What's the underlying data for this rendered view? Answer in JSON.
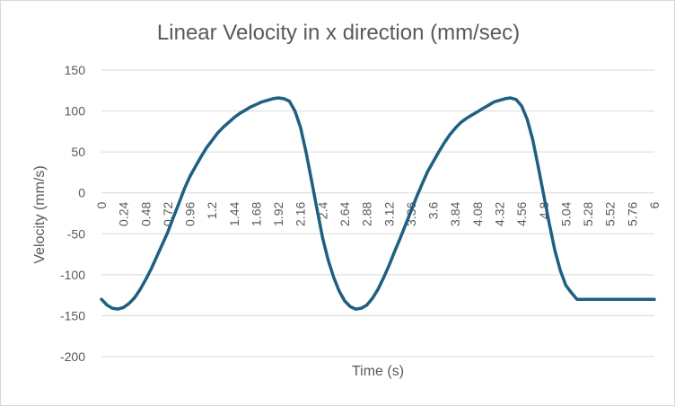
{
  "chart_data": {
    "type": "line",
    "title": "Linear Velocity in x direction (mm/sec)",
    "xlabel": "Time (s)",
    "ylabel": "Velocity (mm/s)",
    "xlim": [
      0,
      6
    ],
    "ylim": [
      -200,
      150
    ],
    "y_ticks": [
      150,
      100,
      50,
      0,
      -50,
      -100,
      -150,
      -200
    ],
    "x_ticks": [
      "0",
      "0.24",
      "0.48",
      "0.72",
      "0.96",
      "1.2",
      "1.44",
      "1.68",
      "1.92",
      "2.16",
      "2.4",
      "2.64",
      "2.88",
      "3.12",
      "3.36",
      "3.6",
      "3.84",
      "4.08",
      "4.32",
      "4.56",
      "4.8",
      "5.04",
      "5.28",
      "5.52",
      "5.76",
      "6"
    ],
    "grid": true,
    "legend": "none",
    "series": [
      {
        "name": "Velocity",
        "color": "#1f5f82",
        "x": [
          0,
          0.06,
          0.12,
          0.18,
          0.24,
          0.3,
          0.36,
          0.42,
          0.48,
          0.54,
          0.6,
          0.66,
          0.72,
          0.78,
          0.84,
          0.9,
          0.96,
          1.02,
          1.08,
          1.14,
          1.2,
          1.26,
          1.32,
          1.38,
          1.44,
          1.5,
          1.56,
          1.62,
          1.68,
          1.74,
          1.8,
          1.86,
          1.92,
          1.98,
          2.04,
          2.1,
          2.16,
          2.22,
          2.28,
          2.34,
          2.4,
          2.46,
          2.52,
          2.58,
          2.64,
          2.7,
          2.76,
          2.82,
          2.88,
          2.94,
          3.0,
          3.06,
          3.12,
          3.18,
          3.24,
          3.3,
          3.36,
          3.42,
          3.48,
          3.54,
          3.6,
          3.66,
          3.72,
          3.78,
          3.84,
          3.9,
          3.96,
          4.02,
          4.08,
          4.14,
          4.2,
          4.26,
          4.32,
          4.38,
          4.44,
          4.5,
          4.56,
          4.62,
          4.68,
          4.74,
          4.8,
          4.86,
          4.92,
          4.98,
          5.04,
          5.1,
          5.16,
          5.22,
          5.28,
          5.34,
          5.4,
          5.46,
          5.52,
          5.58,
          5.64,
          5.7,
          5.76,
          5.82,
          5.88,
          5.94,
          6.0
        ],
        "y": [
          -130,
          -137,
          -141,
          -142,
          -140,
          -135,
          -128,
          -118,
          -106,
          -93,
          -78,
          -63,
          -48,
          -30,
          -13,
          5,
          20,
          32,
          44,
          55,
          64,
          73,
          80,
          86,
          92,
          97,
          101,
          105,
          108,
          111,
          113,
          115,
          116,
          115,
          112,
          100,
          80,
          50,
          15,
          -20,
          -55,
          -82,
          -103,
          -120,
          -132,
          -139,
          -142,
          -141,
          -137,
          -129,
          -118,
          -104,
          -89,
          -72,
          -56,
          -39,
          -22,
          -5,
          11,
          26,
          38,
          50,
          61,
          71,
          79,
          86,
          91,
          95,
          99,
          103,
          107,
          111,
          113,
          115,
          116,
          114,
          106,
          90,
          65,
          32,
          -3,
          -38,
          -70,
          -95,
          -113,
          -122,
          -130,
          -130,
          -130,
          -130,
          -130,
          -130,
          -130,
          -130,
          -130,
          -130,
          -130,
          -130,
          -130,
          -130,
          -130
        ]
      }
    ]
  }
}
